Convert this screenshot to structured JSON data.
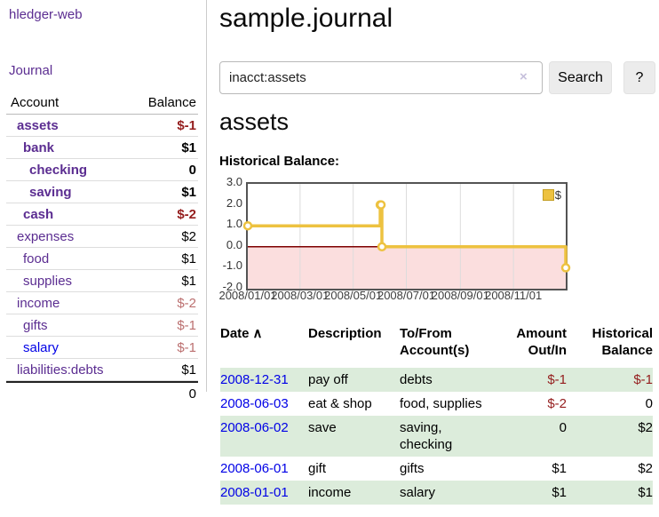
{
  "window": {
    "app_title": "hledger-web"
  },
  "sidebar": {
    "journal_link": "Journal",
    "accounts": {
      "header": {
        "account": "Account",
        "balance": "Balance"
      },
      "rows": [
        {
          "name": "assets",
          "balance": "$-1"
        },
        {
          "name": "bank",
          "balance": "$1"
        },
        {
          "name": "checking",
          "balance": "0"
        },
        {
          "name": "saving",
          "balance": "$1"
        },
        {
          "name": "cash",
          "balance": "$-2"
        },
        {
          "name": "expenses",
          "balance": "$2"
        },
        {
          "name": "food",
          "balance": "$1"
        },
        {
          "name": "supplies",
          "balance": "$1"
        },
        {
          "name": "income",
          "balance": "$-2"
        },
        {
          "name": "gifts",
          "balance": "$-1"
        },
        {
          "name": "salary",
          "balance": "$-1"
        },
        {
          "name": "liabilities:debts",
          "balance": "$1"
        }
      ],
      "total": "0"
    }
  },
  "header": {
    "title": "sample.journal"
  },
  "search": {
    "value": "inacct:assets",
    "clear_icon": "×",
    "search_button": "Search",
    "help_button": "?"
  },
  "account_page": {
    "heading": "assets",
    "chart_label": "Historical Balance:"
  },
  "chart_data": {
    "type": "line",
    "title": "Historical Balance:",
    "x_start": "2008-01-01",
    "x_end": "2008-12-31",
    "ylim": [
      -2.0,
      3.0
    ],
    "yticks": [
      "3.0",
      "2.0",
      "1.0",
      "0.0",
      "-1.0",
      "-2.0"
    ],
    "xticks": [
      {
        "date": "2008-01-01",
        "label": "2008/01/01"
      },
      {
        "date": "2008-03-01",
        "label": "2008/03/01"
      },
      {
        "date": "2008-05-01",
        "label": "2008/05/01"
      },
      {
        "date": "2008-07-01",
        "label": "2008/07/01"
      },
      {
        "date": "2008-09-01",
        "label": "2008/09/01"
      },
      {
        "date": "2008-11-01",
        "label": "2008/11/01"
      }
    ],
    "series": [
      {
        "name": "$",
        "color": "#edc240",
        "step": true,
        "points": [
          [
            "2008-01-01",
            1
          ],
          [
            "2008-06-01",
            2
          ],
          [
            "2008-06-02",
            2
          ],
          [
            "2008-06-03",
            0
          ],
          [
            "2008-12-31",
            -1
          ]
        ]
      }
    ],
    "legend": {
      "label": "$",
      "swatch_color": "#edc240",
      "position": "top-right"
    },
    "colors": {
      "negative_region": "#fbdede",
      "zero_line": "#7d0000",
      "grid": "#dcdcdc",
      "border": "#545454"
    }
  },
  "register": {
    "headers": {
      "date": "Date",
      "sort_indicator": "∧",
      "description": "Description",
      "tofrom": "To/From Account(s)",
      "amount": "Amount Out/In",
      "balance": "Historical Balance"
    },
    "transactions": [
      {
        "date": "2008-12-31",
        "description": "pay off",
        "accounts": "debts",
        "amount": "$-1",
        "balance": "$-1"
      },
      {
        "date": "2008-06-03",
        "description": "eat & shop",
        "accounts": "food, supplies",
        "amount": "$-2",
        "balance": "0"
      },
      {
        "date": "2008-06-02",
        "description": "save",
        "accounts": "saving, checking",
        "amount": "0",
        "balance": "$2"
      },
      {
        "date": "2008-06-01",
        "description": "gift",
        "accounts": "gifts",
        "amount": "$1",
        "balance": "$2"
      },
      {
        "date": "2008-01-01",
        "description": "income",
        "accounts": "salary",
        "amount": "$1",
        "balance": "$1"
      }
    ]
  }
}
